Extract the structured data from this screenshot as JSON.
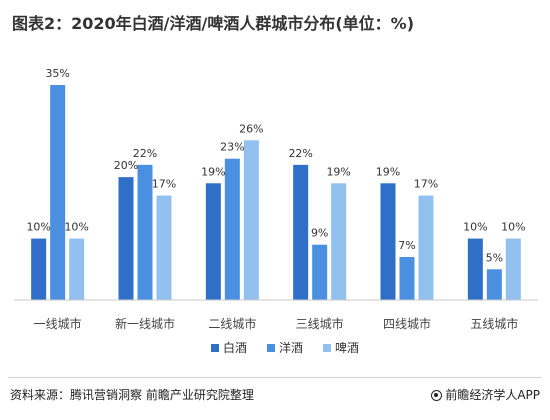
{
  "header": {
    "title": "图表2：2020年白酒/洋酒/啤酒人群城市分布(单位：%)"
  },
  "chart_data": {
    "type": "bar",
    "title": "图表2：2020年白酒/洋酒/啤酒人群城市分布(单位：%)",
    "categories": [
      "一线城市",
      "新一线城市",
      "二线城市",
      "三线城市",
      "四线城市",
      "五线城市"
    ],
    "series": [
      {
        "name": "白酒",
        "values": [
          10,
          20,
          19,
          22,
          19,
          10
        ],
        "color": "#2f6fc7"
      },
      {
        "name": "洋酒",
        "values": [
          35,
          22,
          23,
          9,
          7,
          5
        ],
        "color": "#4a8fe0"
      },
      {
        "name": "啤酒",
        "values": [
          10,
          17,
          26,
          19,
          17,
          10
        ],
        "color": "#93c1ef"
      }
    ],
    "ylim": [
      0,
      38
    ],
    "value_suffix": "%",
    "grid": false,
    "legend_position": "bottom-center",
    "xlabel": "",
    "ylabel": ""
  },
  "footer": {
    "source": "资料来源：腾讯营销洞察 前瞻产业研究院整理",
    "brand": "前瞻经济学人APP"
  }
}
